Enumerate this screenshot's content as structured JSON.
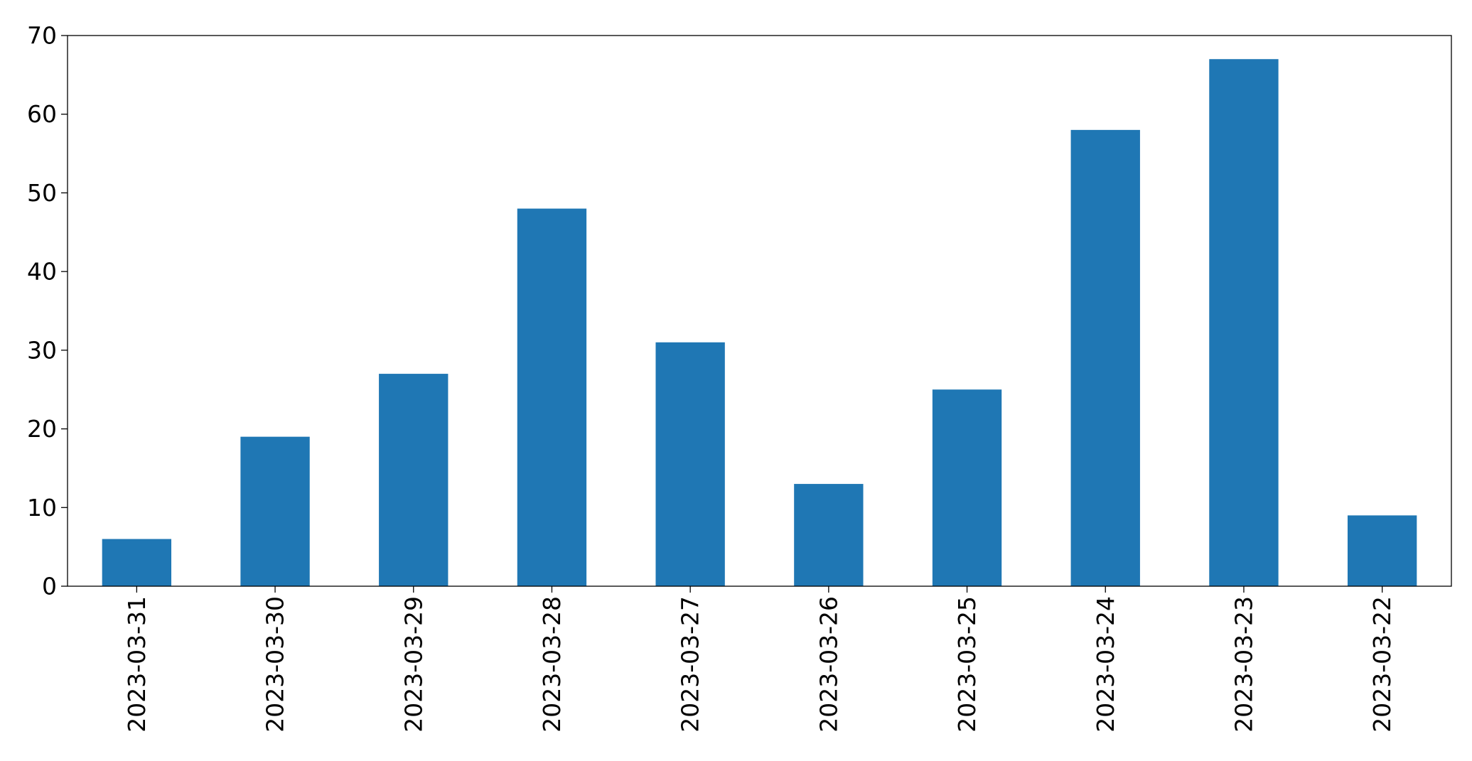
{
  "chart_data": {
    "type": "bar",
    "title": "",
    "xlabel": "",
    "ylabel": "",
    "categories": [
      "2023-03-31",
      "2023-03-30",
      "2023-03-29",
      "2023-03-28",
      "2023-03-27",
      "2023-03-26",
      "2023-03-25",
      "2023-03-24",
      "2023-03-23",
      "2023-03-22"
    ],
    "values": [
      6,
      19,
      27,
      48,
      31,
      13,
      25,
      58,
      67,
      9
    ],
    "ylim": [
      0,
      70
    ],
    "yticks": [
      "0",
      "10",
      "20",
      "30",
      "40",
      "50",
      "60",
      "70"
    ],
    "bar_color": "#1f77b4",
    "grid": false,
    "legend": "none"
  }
}
